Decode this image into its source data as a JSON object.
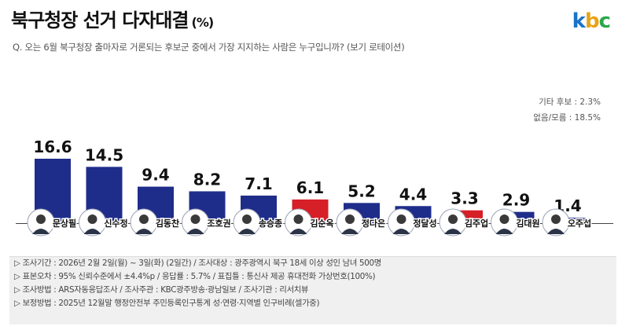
{
  "header": {
    "title": "북구청장 선거 다자대결",
    "unit": "(%)",
    "logo_k": "k",
    "logo_b": "b",
    "logo_c": "c"
  },
  "question": "Q. 오는 6월 북구청장 출마자로 거론되는 후보군 중에서 가장 지지하는 사람은 누구입니까? (보기 로테이션)",
  "notes": {
    "other": "기타 후보 : 2.3%",
    "none": "없음/모름 : 18.5%"
  },
  "colors": {
    "bar": "#1f2d8a",
    "bar_highlight": "#d61f26",
    "baseline": "#444444"
  },
  "chart_data": {
    "type": "bar",
    "title": "북구청장 선거 다자대결",
    "ylabel": "(%)",
    "categories": [
      "문상필",
      "신수정",
      "김동찬",
      "조호권",
      "송승종",
      "김순옥",
      "정다은",
      "정달성",
      "김주업",
      "김대원",
      "오주섭"
    ],
    "values": [
      16.6,
      14.5,
      9.4,
      8.2,
      7.1,
      6.1,
      5.2,
      4.4,
      3.3,
      2.9,
      1.4
    ],
    "highlight": [
      false,
      false,
      false,
      false,
      false,
      true,
      false,
      false,
      true,
      false,
      false
    ],
    "ylim": [
      0,
      17
    ]
  },
  "footer": [
    "▷ 조사기간 : 2026년 2월 2일(월) ~ 3일(화) (2일간) / 조사대상 : 광주광역시 북구 18세 이상 성인 남녀 500명",
    "▷ 표본오차 : 95% 신뢰수준에서 ±4.4%p / 응답률 : 5.7% / 표집틀 : 통신사 제공 휴대전화 가상번호(100%)",
    "▷ 조사방법 : ARS자동응답조사 / 조사주관 : KBC광주방송·광남일보 / 조사기관 : 리서치뷰",
    "▷ 보정방법 : 2025년 12월말 행정안전부 주민등록인구통계 성·연령·지역별 인구비례(셀가중)"
  ]
}
